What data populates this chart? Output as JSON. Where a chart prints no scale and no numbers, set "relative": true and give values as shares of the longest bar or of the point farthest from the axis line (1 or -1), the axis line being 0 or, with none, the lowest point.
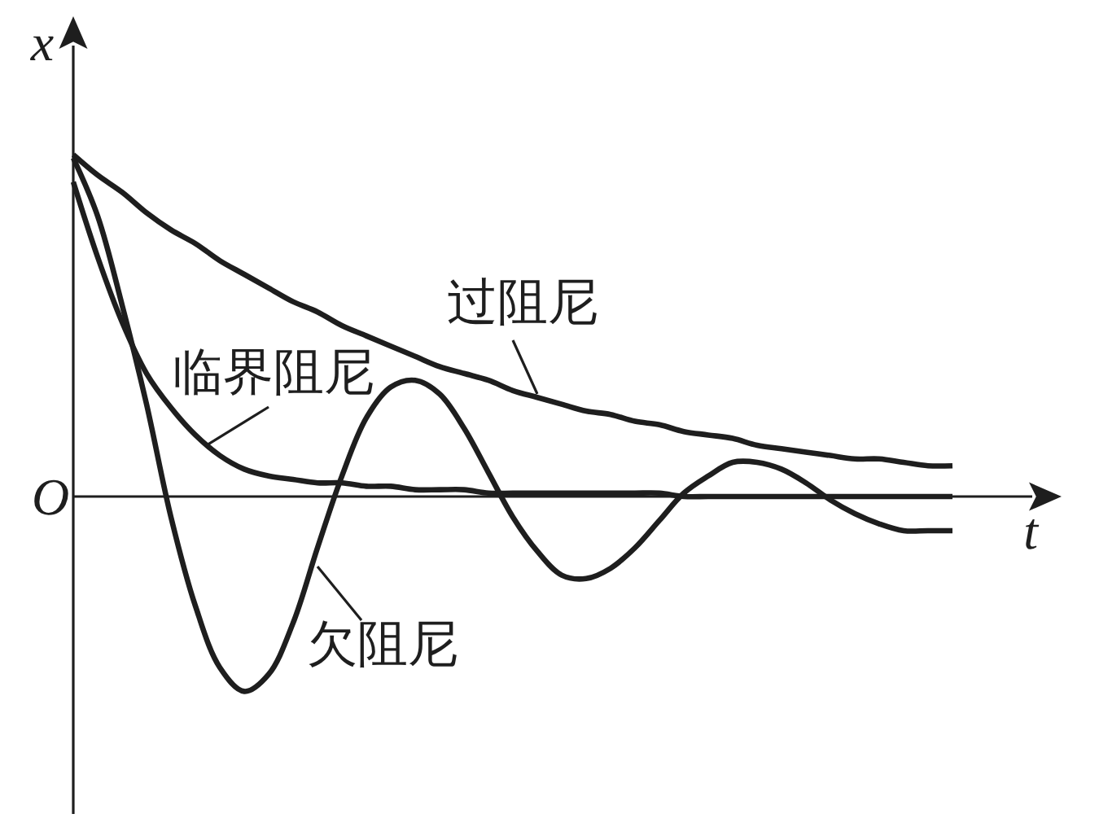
{
  "chart_data": {
    "type": "line",
    "relative": true,
    "xlabel": "t",
    "ylabel": "x",
    "annotations": [
      "O"
    ],
    "categories": [
      null,
      null,
      null,
      null,
      null,
      null,
      null,
      null,
      null,
      null,
      null,
      null,
      null,
      null,
      null,
      null,
      null,
      null,
      null,
      null,
      null,
      null,
      null,
      null,
      null,
      null,
      null,
      null,
      null,
      null,
      null,
      null,
      null,
      null,
      null,
      null,
      null
    ],
    "series": [
      {
        "name": "过阻尼",
        "color": "#1e1e1e",
        "values": [
          1.0,
          0.94,
          0.89,
          0.83,
          0.78,
          0.74,
          0.69,
          0.65,
          0.61,
          0.57,
          0.54,
          0.5,
          0.47,
          0.44,
          0.41,
          0.38,
          0.36,
          0.34,
          0.31,
          0.29,
          0.27,
          0.25,
          0.24,
          0.22,
          0.21,
          0.19,
          0.18,
          0.17,
          0.15,
          0.14,
          0.13,
          0.12,
          0.11,
          0.11,
          0.1,
          0.09,
          0.09
        ]
      },
      {
        "name": "临界阻尼",
        "color": "#1e1e1e",
        "values": [
          0.92,
          0.7,
          0.51,
          0.36,
          0.26,
          0.18,
          0.12,
          0.08,
          0.06,
          0.05,
          0.04,
          0.04,
          0.03,
          0.03,
          0.02,
          0.02,
          0.02,
          0.01,
          0.01,
          0.01,
          0.01,
          0.01,
          0.01,
          0.01,
          0.01,
          0,
          0,
          0,
          0,
          0,
          0,
          0,
          0,
          0,
          0,
          0,
          0
        ]
      },
      {
        "name": "欠阻尼",
        "color": "#1e1e1e",
        "values": [
          0.99,
          0.82,
          0.56,
          0.27,
          -0.06,
          -0.32,
          -0.5,
          -0.57,
          -0.52,
          -0.37,
          -0.15,
          0.06,
          0.23,
          0.32,
          0.34,
          0.3,
          0.2,
          0.07,
          -0.06,
          -0.16,
          -0.23,
          -0.24,
          -0.21,
          -0.15,
          -0.07,
          0.01,
          0.06,
          0.1,
          0.1,
          0.08,
          0.04,
          -0.01,
          -0.05,
          -0.08,
          -0.1,
          -0.1,
          -0.1
        ]
      }
    ]
  }
}
